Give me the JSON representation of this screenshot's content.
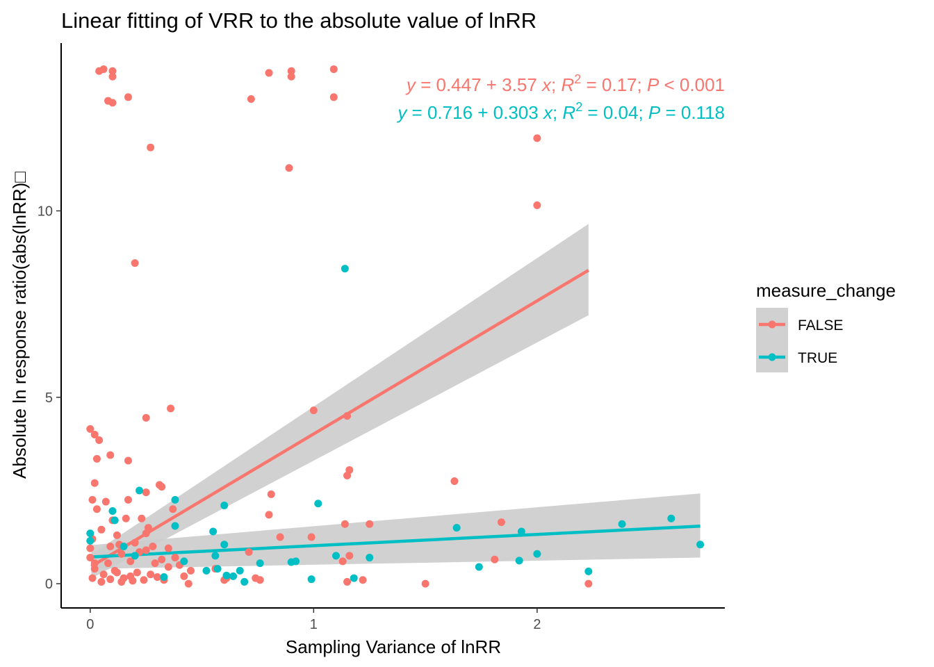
{
  "chart_data": {
    "type": "scatter",
    "title": "Linear fitting of VRR to the absolute value of lnRR",
    "xlabel": "Sampling Variance of lnRR",
    "ylabel": "Absolute ln response ratio(abs(lnRR)□",
    "xlim": [
      -0.13,
      2.84
    ],
    "ylim": [
      -0.65,
      14.5
    ],
    "x_ticks": [
      0,
      1,
      2
    ],
    "y_ticks": [
      0,
      5,
      10
    ],
    "grid": false,
    "legend": {
      "title": "measure_change",
      "placement": "right",
      "entries": [
        "FALSE",
        "TRUE"
      ]
    },
    "colors": {
      "FALSE": "#f8766d",
      "TRUE": "#00bfc4",
      "band": "#cccccc"
    },
    "equations": [
      {
        "y": "y",
        "eq": " = 0.447 + 3.57 ",
        "x": "x",
        "r": "; R",
        "sup": "2",
        "rest": " = 0.17; ",
        "p": "P",
        "pval": " < 0.001",
        "series": "FALSE"
      },
      {
        "y": "y",
        "eq": " = 0.716 + 0.303 ",
        "x": "x",
        "r": "; R",
        "sup": "2",
        "rest": " = 0.04; ",
        "p": "P",
        "pval": " = 0.118",
        "series": "TRUE"
      }
    ],
    "series": [
      {
        "name": "FALSE",
        "fit": {
          "intercept": 0.447,
          "slope": 3.57,
          "x_range": [
            0.005,
            2.23
          ],
          "ci_lower_end": 7.2,
          "ci_upper_end": 9.65
        },
        "points": [
          [
            0.04,
            13.75
          ],
          [
            0.06,
            13.8
          ],
          [
            0.1,
            13.75
          ],
          [
            0.1,
            13.6
          ],
          [
            0.08,
            12.95
          ],
          [
            0.1,
            12.9
          ],
          [
            0.17,
            13.05
          ],
          [
            0.8,
            13.7
          ],
          [
            0.9,
            13.75
          ],
          [
            0.9,
            13.6
          ],
          [
            1.09,
            13.8
          ],
          [
            1.09,
            13.05
          ],
          [
            0.72,
            13.0
          ],
          [
            0.27,
            11.7
          ],
          [
            0.89,
            11.15
          ],
          [
            2.0,
            11.95
          ],
          [
            2.0,
            10.15
          ],
          [
            0.2,
            8.6
          ],
          [
            0.36,
            4.7
          ],
          [
            0.25,
            4.45
          ],
          [
            1.0,
            4.65
          ],
          [
            1.15,
            4.5
          ],
          [
            0.0,
            4.15
          ],
          [
            0.02,
            4.0
          ],
          [
            0.04,
            3.85
          ],
          [
            0.03,
            3.35
          ],
          [
            0.09,
            3.45
          ],
          [
            0.17,
            3.3
          ],
          [
            1.16,
            3.05
          ],
          [
            1.15,
            2.9
          ],
          [
            1.63,
            2.75
          ],
          [
            0.02,
            2.7
          ],
          [
            0.31,
            2.65
          ],
          [
            0.32,
            2.6
          ],
          [
            0.25,
            2.45
          ],
          [
            0.01,
            2.25
          ],
          [
            0.07,
            2.2
          ],
          [
            0.17,
            2.25
          ],
          [
            0.81,
            2.4
          ],
          [
            0.37,
            2.0
          ],
          [
            0.8,
            1.85
          ],
          [
            0.03,
            2.0
          ],
          [
            0.1,
            1.7
          ],
          [
            0.16,
            1.75
          ],
          [
            0.23,
            1.75
          ],
          [
            1.14,
            1.6
          ],
          [
            1.25,
            1.6
          ],
          [
            1.84,
            1.65
          ],
          [
            0.05,
            1.45
          ],
          [
            0.12,
            1.3
          ],
          [
            0.25,
            1.35
          ],
          [
            0.26,
            1.5
          ],
          [
            0.85,
            1.25
          ],
          [
            0.99,
            1.25
          ],
          [
            0.09,
            1.0
          ],
          [
            0.13,
            1.05
          ],
          [
            0.2,
            1.1
          ],
          [
            0.28,
            1.0
          ],
          [
            0.35,
            0.95
          ],
          [
            0.14,
            0.8
          ],
          [
            0.22,
            0.85
          ],
          [
            0.25,
            0.9
          ],
          [
            0.71,
            0.85
          ],
          [
            0.32,
            0.65
          ],
          [
            0.38,
            0.7
          ],
          [
            0.08,
            0.55
          ],
          [
            0.18,
            0.6
          ],
          [
            0.29,
            0.55
          ],
          [
            0.4,
            0.5
          ],
          [
            0.45,
            0.35
          ],
          [
            0.56,
            0.4
          ],
          [
            1.16,
            0.75
          ],
          [
            1.13,
            0.6
          ],
          [
            1.81,
            0.65
          ],
          [
            0.02,
            0.4
          ],
          [
            0.11,
            0.35
          ],
          [
            0.21,
            0.3
          ],
          [
            0.35,
            0.45
          ],
          [
            0.42,
            0.2
          ],
          [
            0.6,
            0.1
          ],
          [
            0.61,
            0.15
          ],
          [
            0.74,
            0.15
          ],
          [
            0.76,
            0.1
          ],
          [
            1.15,
            0.05
          ],
          [
            1.22,
            0.1
          ],
          [
            1.5,
            0.0
          ],
          [
            2.23,
            0.0
          ],
          [
            0.44,
            0.0
          ],
          [
            0.01,
            0.15
          ],
          [
            0.05,
            0.05
          ],
          [
            0.09,
            0.12
          ],
          [
            0.14,
            0.05
          ],
          [
            0.18,
            0.2
          ],
          [
            0.24,
            0.1
          ],
          [
            0.3,
            0.18
          ],
          [
            0.06,
            0.25
          ],
          [
            0.12,
            0.3
          ],
          [
            0.15,
            0.15
          ],
          [
            0.19,
            0.08
          ],
          [
            0.27,
            0.25
          ],
          [
            0.33,
            0.1
          ],
          [
            0.0,
            0.7
          ],
          [
            0.0,
            0.95
          ],
          [
            0.01,
            1.2
          ],
          [
            0.02,
            0.55
          ]
        ]
      },
      {
        "name": "TRUE",
        "fit": {
          "intercept": 0.716,
          "slope": 0.303,
          "x_range": [
            0.005,
            2.73
          ],
          "ci_lower_end": 0.7,
          "ci_upper_end": 2.42
        },
        "points": [
          [
            1.14,
            8.45
          ],
          [
            0.22,
            2.5
          ],
          [
            0.38,
            2.25
          ],
          [
            0.6,
            2.1
          ],
          [
            0.55,
            1.4
          ],
          [
            1.02,
            2.15
          ],
          [
            0.1,
            1.95
          ],
          [
            0.11,
            1.7
          ],
          [
            0.38,
            1.55
          ],
          [
            1.64,
            1.5
          ],
          [
            2.38,
            1.6
          ],
          [
            2.6,
            1.75
          ],
          [
            1.93,
            1.4
          ],
          [
            2.73,
            1.05
          ],
          [
            0.6,
            1.05
          ],
          [
            0.0,
            1.35
          ],
          [
            0.0,
            1.15
          ],
          [
            2.0,
            0.8
          ],
          [
            1.1,
            0.75
          ],
          [
            1.25,
            0.7
          ],
          [
            1.92,
            0.62
          ],
          [
            0.56,
            0.75
          ],
          [
            0.9,
            0.58
          ],
          [
            0.92,
            0.6
          ],
          [
            0.76,
            0.55
          ],
          [
            1.74,
            0.45
          ],
          [
            2.23,
            0.33
          ],
          [
            0.52,
            0.35
          ],
          [
            0.57,
            0.4
          ],
          [
            0.61,
            0.22
          ],
          [
            0.67,
            0.35
          ],
          [
            0.64,
            0.2
          ],
          [
            0.69,
            0.05
          ],
          [
            1.18,
            0.15
          ],
          [
            0.99,
            0.12
          ],
          [
            0.33,
            0.18
          ],
          [
            0.42,
            0.6
          ],
          [
            0.2,
            0.75
          ],
          [
            0.15,
            1.0
          ]
        ]
      }
    ]
  }
}
